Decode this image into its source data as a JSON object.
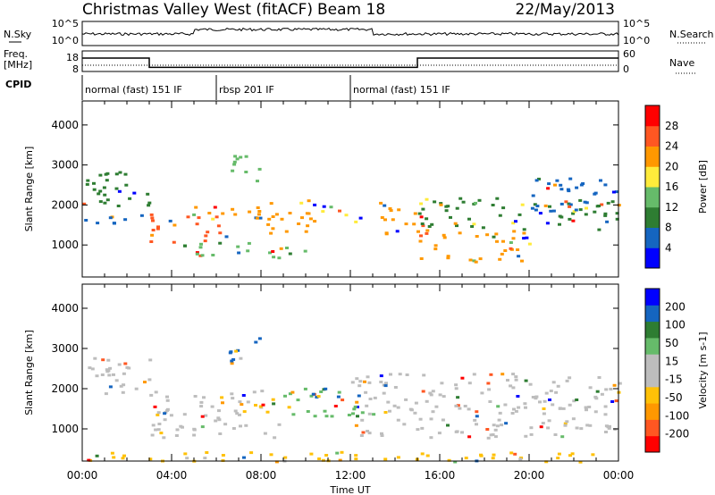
{
  "header": {
    "title": "Christmas Valley West (fitACF)",
    "beam": "Beam 18",
    "date": "22/May/2013"
  },
  "noise_panel": {
    "left_label": "N.Sky",
    "right_label": "N.Search",
    "left_ticks": [
      "10^5",
      "10^0"
    ],
    "right_ticks": [
      "10^5",
      "10^0"
    ]
  },
  "freq_panel": {
    "left_label_1": "Freq.",
    "left_label_2": "[MHz]",
    "right_label": "Nave",
    "left_ticks": [
      "18",
      "8"
    ],
    "right_ticks": [
      "60",
      "0"
    ],
    "freq_mhz": [
      {
        "t": 0,
        "v": 14.5
      },
      {
        "t": 3.0,
        "v": 14.5
      },
      {
        "t": 3.0,
        "v": 10.0
      },
      {
        "t": 15.0,
        "v": 10.0
      },
      {
        "t": 15.0,
        "v": 14.5
      },
      {
        "t": 24,
        "v": 14.5
      }
    ]
  },
  "cpid": {
    "label": "CPID",
    "segments": [
      {
        "start": 0,
        "end": 6,
        "text": "normal (fast) 151 IF"
      },
      {
        "start": 6,
        "end": 12,
        "text": "rbsp 201 IF"
      },
      {
        "start": 12,
        "end": 24,
        "text": "normal (fast) 151 IF"
      }
    ]
  },
  "x_axis": {
    "label": "Time UT",
    "ticks": [
      "00:00",
      "04:00",
      "08:00",
      "12:00",
      "16:00",
      "20:00",
      "00:00"
    ]
  },
  "chart_data": [
    {
      "type": "heatmap",
      "title": "",
      "xlabel": "",
      "ylabel": "Slant Range [km]",
      "xlim": [
        0,
        24
      ],
      "ylim": [
        200,
        4600
      ],
      "yticks": [
        "4000",
        "3000",
        "2000",
        "1000"
      ],
      "colorbar": {
        "label": "Power [dB]",
        "ticks": [
          "28",
          "24",
          "20",
          "16",
          "12",
          "8",
          "4"
        ],
        "range": [
          0,
          30
        ],
        "colors": [
          "#0000ff",
          "#1565c0",
          "#2e7d32",
          "#66bb6a",
          "#ffeb3b",
          "#ff9800",
          "#ff5722",
          "#ff0000"
        ]
      },
      "regions": [
        {
          "t0": 0.0,
          "t1": 3.0,
          "r0": 1900,
          "r1": 2900,
          "level": 10
        },
        {
          "t0": 0.0,
          "t1": 3.0,
          "r0": 1500,
          "r1": 1800,
          "level": 6
        },
        {
          "t0": 3.0,
          "t1": 6.5,
          "r0": 1100,
          "r1": 1800,
          "level": 26
        },
        {
          "t0": 5.0,
          "t1": 8.5,
          "r0": 1700,
          "r1": 2100,
          "level": 22
        },
        {
          "t0": 6.5,
          "t1": 8.0,
          "r0": 2600,
          "r1": 3300,
          "level": 14
        },
        {
          "t0": 4.5,
          "t1": 10.5,
          "r0": 700,
          "r1": 1100,
          "level": 12
        },
        {
          "t0": 8.0,
          "t1": 10.5,
          "r0": 1300,
          "r1": 2200,
          "level": 22
        },
        {
          "t0": 10.5,
          "t1": 12.5,
          "r0": 1600,
          "r1": 2000,
          "level": 16
        },
        {
          "t0": 13.0,
          "t1": 15.0,
          "r0": 1300,
          "r1": 2100,
          "level": 20
        },
        {
          "t0": 15.0,
          "t1": 20.0,
          "r0": 600,
          "r1": 1400,
          "level": 22
        },
        {
          "t0": 15.0,
          "t1": 24.0,
          "r0": 1400,
          "r1": 2200,
          "level": 8
        },
        {
          "t0": 20.0,
          "t1": 24.0,
          "r0": 1800,
          "r1": 2700,
          "level": 6
        }
      ]
    },
    {
      "type": "heatmap",
      "title": "",
      "xlabel": "Time UT",
      "ylabel": "Slant Range [km]",
      "xlim": [
        0,
        24
      ],
      "ylim": [
        200,
        4600
      ],
      "yticks": [
        "4000",
        "3000",
        "2000",
        "1000"
      ],
      "colorbar": {
        "label": "Velocity [m s-1]",
        "ticks": [
          "200",
          "100",
          "50",
          "15",
          "-15",
          "-50",
          "-100",
          "-200"
        ],
        "range": [
          -250,
          250
        ],
        "colors": [
          "#ff0000",
          "#ff5722",
          "#ff9800",
          "#ffc107",
          "#bdbdbd",
          "#bdbdbd",
          "#66bb6a",
          "#2e7d32",
          "#1565c0",
          "#0000ff"
        ]
      },
      "regions": [
        {
          "t0": 0.0,
          "t1": 3.0,
          "r0": 1900,
          "r1": 2900,
          "vel": 0
        },
        {
          "t0": 3.0,
          "t1": 8.0,
          "r0": 1200,
          "r1": 2000,
          "vel": 0
        },
        {
          "t0": 6.5,
          "t1": 8.0,
          "r0": 2600,
          "r1": 3300,
          "vel": 180
        },
        {
          "t0": 7.0,
          "t1": 9.5,
          "r0": 1400,
          "r1": 1800,
          "vel": -60
        },
        {
          "t0": 9.0,
          "t1": 12.5,
          "r0": 1300,
          "r1": 2100,
          "vel": 60
        },
        {
          "t0": 9.5,
          "t1": 11.5,
          "r0": 1800,
          "r1": 2100,
          "vel": 180
        },
        {
          "t0": 3.0,
          "t1": 9.0,
          "r0": 800,
          "r1": 1200,
          "vel": -40
        },
        {
          "t0": 12.0,
          "t1": 24.0,
          "r0": 800,
          "r1": 2400,
          "vel": 0
        },
        {
          "t0": 0.0,
          "t1": 24.0,
          "r0": 200,
          "r1": 450,
          "vel": -60
        }
      ]
    }
  ]
}
